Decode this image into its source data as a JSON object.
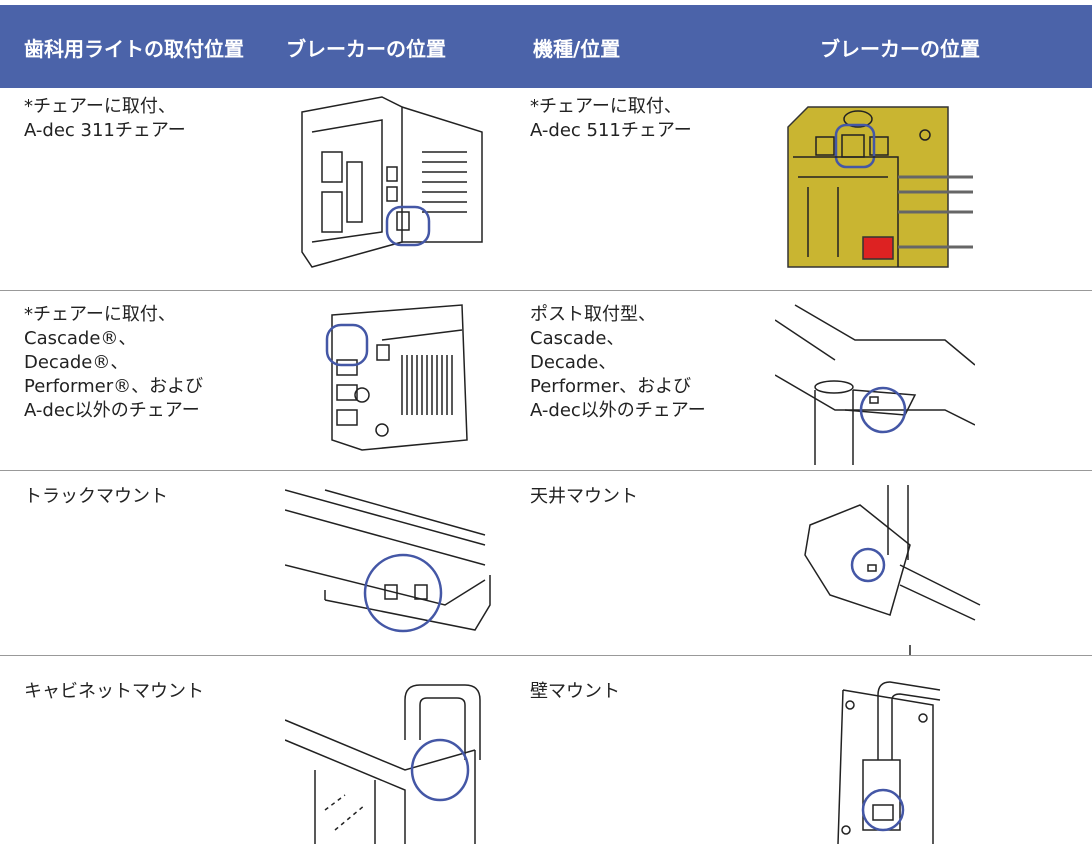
{
  "header": {
    "cells": [
      "歯科用ライトの取付位置",
      "ブレーカーの位置",
      "機種/位置",
      "ブレーカーの位置"
    ]
  },
  "rows": [
    {
      "left": [
        "*チェアーに取付、",
        "A-dec 311チェアー"
      ],
      "right": [
        "*チェアーに取付、",
        "A-dec 511チェアー"
      ]
    },
    {
      "left": [
        "*チェアーに取付、",
        "Cascade®、",
        "Decade®、",
        "Performer®、および",
        "A-dec以外のチェアー"
      ],
      "right": [
        "ポスト取付型、",
        "Cascade、",
        "Decade、",
        "Performer、および",
        "A-dec以外のチェアー"
      ]
    },
    {
      "left": [
        "トラックマウント"
      ],
      "right": [
        "天井マウント"
      ]
    },
    {
      "left": [
        "キャビネットマウント"
      ],
      "right": [
        "壁マウント"
      ]
    }
  ]
}
